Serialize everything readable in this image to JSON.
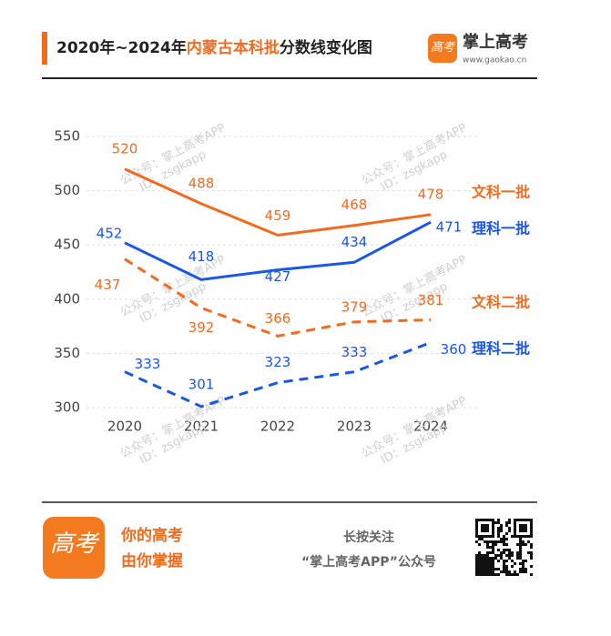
{
  "header": {
    "brand": "掌上高考",
    "site": "www.gaokao.cn",
    "logo": "高考"
  },
  "chart_data": {
    "type": "line",
    "title": [
      "2020年~2024年",
      "内蒙古本科批",
      "分数线变化图"
    ],
    "title_colors": [
      "#222222",
      "#f26b1d",
      "#222222"
    ],
    "categories": [
      "2020",
      "2021",
      "2022",
      "2023",
      "2024"
    ],
    "series": [
      {
        "name": "文科一批",
        "color": "#f26b1d",
        "dashed": false,
        "values": [
          520,
          488,
          459,
          468,
          478
        ]
      },
      {
        "name": "理科一批",
        "color": "#1a56e8",
        "dashed": false,
        "values": [
          452,
          418,
          427,
          434,
          471
        ]
      },
      {
        "name": "文科二批",
        "color": "#f26b1d",
        "dashed": true,
        "values": [
          437,
          392,
          366,
          379,
          381
        ]
      },
      {
        "name": "理科二批",
        "color": "#1a56e8",
        "dashed": true,
        "values": [
          333,
          301,
          323,
          333,
          360
        ]
      }
    ],
    "ylim": [
      300,
      550
    ],
    "yticks": [
      300,
      350,
      400,
      450,
      500,
      550
    ],
    "grid": true,
    "watermark": [
      "公众号：掌上高考APP",
      "ID：zsgkapp"
    ]
  },
  "footer": {
    "slogan": [
      "你的高考",
      "由你掌握"
    ],
    "follow": "长按关注",
    "account": "“掌上高考APP”公众号"
  }
}
